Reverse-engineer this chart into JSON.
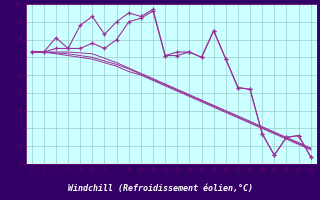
{
  "title": "",
  "xlabel": "Windchill (Refroidissement éolien,°C)",
  "x_values": [
    0,
    1,
    2,
    3,
    4,
    5,
    6,
    7,
    8,
    9,
    10,
    11,
    12,
    13,
    14,
    15,
    16,
    17,
    18,
    19,
    20,
    21,
    22,
    23
  ],
  "line1": [
    7.3,
    7.3,
    8.1,
    7.5,
    8.8,
    9.3,
    8.3,
    9.0,
    9.5,
    9.3,
    9.7,
    7.1,
    7.3,
    7.3,
    7.0,
    8.5,
    6.9,
    5.3,
    5.2,
    2.7,
    1.5,
    2.5,
    2.6,
    1.4
  ],
  "line2": [
    7.3,
    7.3,
    7.5,
    7.5,
    7.5,
    7.8,
    7.5,
    8.0,
    9.0,
    9.2,
    9.6,
    7.1,
    7.1,
    7.3,
    7.0,
    8.5,
    6.9,
    5.3,
    5.2,
    2.7,
    1.5,
    2.5,
    2.6,
    1.4
  ],
  "line3": [
    7.3,
    7.3,
    7.3,
    7.3,
    7.25,
    7.2,
    6.95,
    6.7,
    6.4,
    6.1,
    5.8,
    5.5,
    5.2,
    4.9,
    4.6,
    4.3,
    4.0,
    3.7,
    3.4,
    3.1,
    2.8,
    2.5,
    2.2,
    1.9
  ],
  "line4": [
    7.3,
    7.3,
    7.25,
    7.2,
    7.1,
    7.0,
    6.8,
    6.6,
    6.35,
    6.05,
    5.75,
    5.45,
    5.15,
    4.85,
    4.55,
    4.25,
    3.95,
    3.65,
    3.35,
    3.05,
    2.75,
    2.45,
    2.15,
    1.85
  ],
  "line5": [
    7.3,
    7.3,
    7.2,
    7.1,
    7.0,
    6.9,
    6.7,
    6.5,
    6.2,
    6.0,
    5.7,
    5.4,
    5.1,
    4.8,
    4.5,
    4.2,
    3.9,
    3.6,
    3.3,
    3.0,
    2.7,
    2.4,
    2.1,
    1.8
  ],
  "line_color": "#993399",
  "bg_color": "#ccffff",
  "label_bg_color": "#330066",
  "label_text_color": "#ffffff",
  "grid_color": "#99cccc",
  "axis_color": "#660066",
  "ylim": [
    1,
    10
  ],
  "xlim": [
    -0.5,
    23.5
  ],
  "yticks": [
    1,
    2,
    3,
    4,
    5,
    6,
    7,
    8,
    9,
    10
  ],
  "xticks": [
    0,
    1,
    2,
    3,
    4,
    5,
    6,
    7,
    8,
    9,
    10,
    11,
    12,
    13,
    14,
    15,
    16,
    17,
    18,
    19,
    20,
    21,
    22,
    23
  ]
}
